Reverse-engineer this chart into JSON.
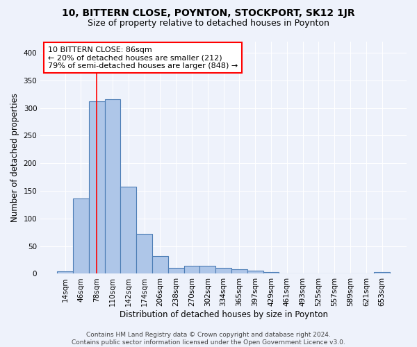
{
  "title": "10, BITTERN CLOSE, POYNTON, STOCKPORT, SK12 1JR",
  "subtitle": "Size of property relative to detached houses in Poynton",
  "xlabel": "Distribution of detached houses by size in Poynton",
  "ylabel": "Number of detached properties",
  "footer_line1": "Contains HM Land Registry data © Crown copyright and database right 2024.",
  "footer_line2": "Contains public sector information licensed under the Open Government Licence v3.0.",
  "bin_labels": [
    "14sqm",
    "46sqm",
    "78sqm",
    "110sqm",
    "142sqm",
    "174sqm",
    "206sqm",
    "238sqm",
    "270sqm",
    "302sqm",
    "334sqm",
    "365sqm",
    "397sqm",
    "429sqm",
    "461sqm",
    "493sqm",
    "525sqm",
    "557sqm",
    "589sqm",
    "621sqm",
    "653sqm"
  ],
  "bar_heights": [
    4,
    136,
    312,
    316,
    158,
    72,
    32,
    11,
    15,
    14,
    11,
    8,
    5,
    3,
    1,
    0,
    1,
    0,
    0,
    0,
    3
  ],
  "bar_color": "#aec6e8",
  "bar_edge_color": "#4c7db5",
  "annotation_line1": "10 BITTERN CLOSE: 86sqm",
  "annotation_line2": "← 20% of detached houses are smaller (212)",
  "annotation_line3": "79% of semi-detached houses are larger (848) →",
  "annotation_box_color": "white",
  "annotation_box_edge_color": "red",
  "property_line_color": "red",
  "property_line_x": 2.0,
  "ylim": [
    0,
    420
  ],
  "yticks": [
    0,
    50,
    100,
    150,
    200,
    250,
    300,
    350,
    400
  ],
  "background_color": "#eef2fb",
  "grid_color": "white",
  "title_fontsize": 10,
  "subtitle_fontsize": 9,
  "axis_label_fontsize": 8.5,
  "tick_fontsize": 7.5,
  "annotation_fontsize": 8,
  "footer_fontsize": 6.5
}
